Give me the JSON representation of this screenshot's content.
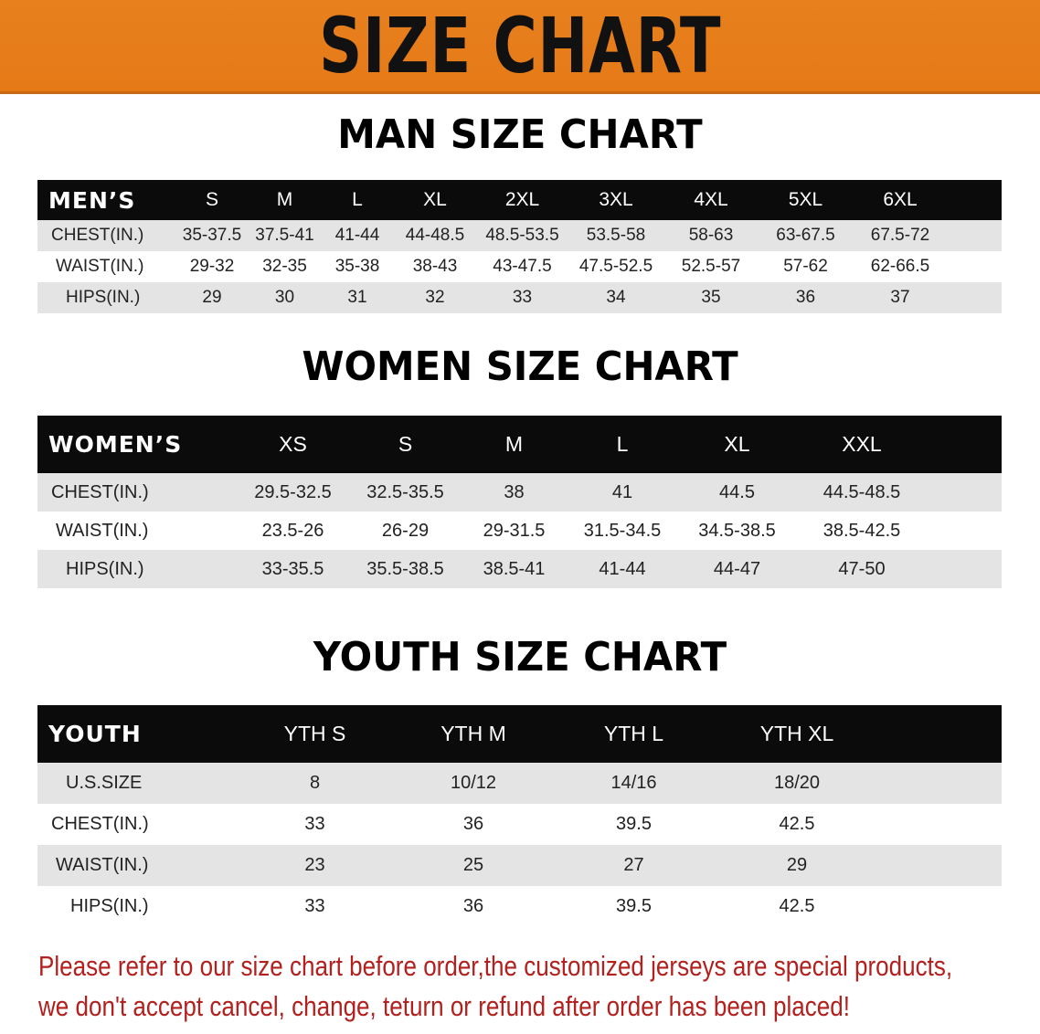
{
  "title": "SIZE CHART",
  "men": {
    "title": "MAN SIZE CHART",
    "header": "MEN’S",
    "sizes": [
      "S",
      "M",
      "L",
      "XL",
      "2XL",
      "3XL",
      "4XL",
      "5XL",
      "6XL"
    ],
    "rows": [
      {
        "label": "CHEST(IN.)",
        "values": [
          "35-37.5",
          "37.5-41",
          "41-44",
          "44-48.5",
          "48.5-53.5",
          "53.5-58",
          "58-63",
          "63-67.5",
          "67.5-72"
        ]
      },
      {
        "label": "WAIST(IN.)",
        "values": [
          "29-32",
          "32-35",
          "35-38",
          "38-43",
          "43-47.5",
          "47.5-52.5",
          "52.5-57",
          "57-62",
          "62-66.5"
        ]
      },
      {
        "label": "HIPS(IN.)",
        "values": [
          "29",
          "30",
          "31",
          "32",
          "33",
          "34",
          "35",
          "36",
          "37"
        ]
      }
    ]
  },
  "women": {
    "title": "WOMEN SIZE CHART",
    "header": "WOMEN’S",
    "sizes": [
      "XS",
      "S",
      "M",
      "L",
      "XL",
      "XXL"
    ],
    "rows": [
      {
        "label": "CHEST(IN.)",
        "values": [
          "29.5-32.5",
          "32.5-35.5",
          "38",
          "41",
          "44.5",
          "44.5-48.5"
        ]
      },
      {
        "label": "WAIST(IN.)",
        "values": [
          "23.5-26",
          "26-29",
          "29-31.5",
          "31.5-34.5",
          "34.5-38.5",
          "38.5-42.5"
        ]
      },
      {
        "label": "HIPS(IN.)",
        "values": [
          "33-35.5",
          "35.5-38.5",
          "38.5-41",
          "41-44",
          "44-47",
          "47-50"
        ]
      }
    ]
  },
  "youth": {
    "title": "YOUTH SIZE CHART",
    "header": "YOUTH",
    "sizes": [
      "YTH S",
      "YTH M",
      "YTH L",
      "YTH XL"
    ],
    "rows": [
      {
        "label": "U.S.SIZE",
        "values": [
          "8",
          "10/12",
          "14/16",
          "18/20"
        ]
      },
      {
        "label": "CHEST(IN.)",
        "values": [
          "33",
          "36",
          "39.5",
          "42.5"
        ]
      },
      {
        "label": "WAIST(IN.)",
        "values": [
          "23",
          "25",
          "27",
          "29"
        ]
      },
      {
        "label": "HIPS(IN.)",
        "values": [
          "33",
          "36",
          "39.5",
          "42.5"
        ]
      }
    ]
  },
  "notice": [
    "Please refer to our size chart before order,the customized jerseys are special products,",
    "we don't accept cancel, change, teturn or refund after order has been placed!"
  ],
  "colors": {
    "banner": "#e67d1a",
    "header_row": "#0b0b0b",
    "stripe": "#e4e4e4",
    "notice": "#b3201e"
  }
}
